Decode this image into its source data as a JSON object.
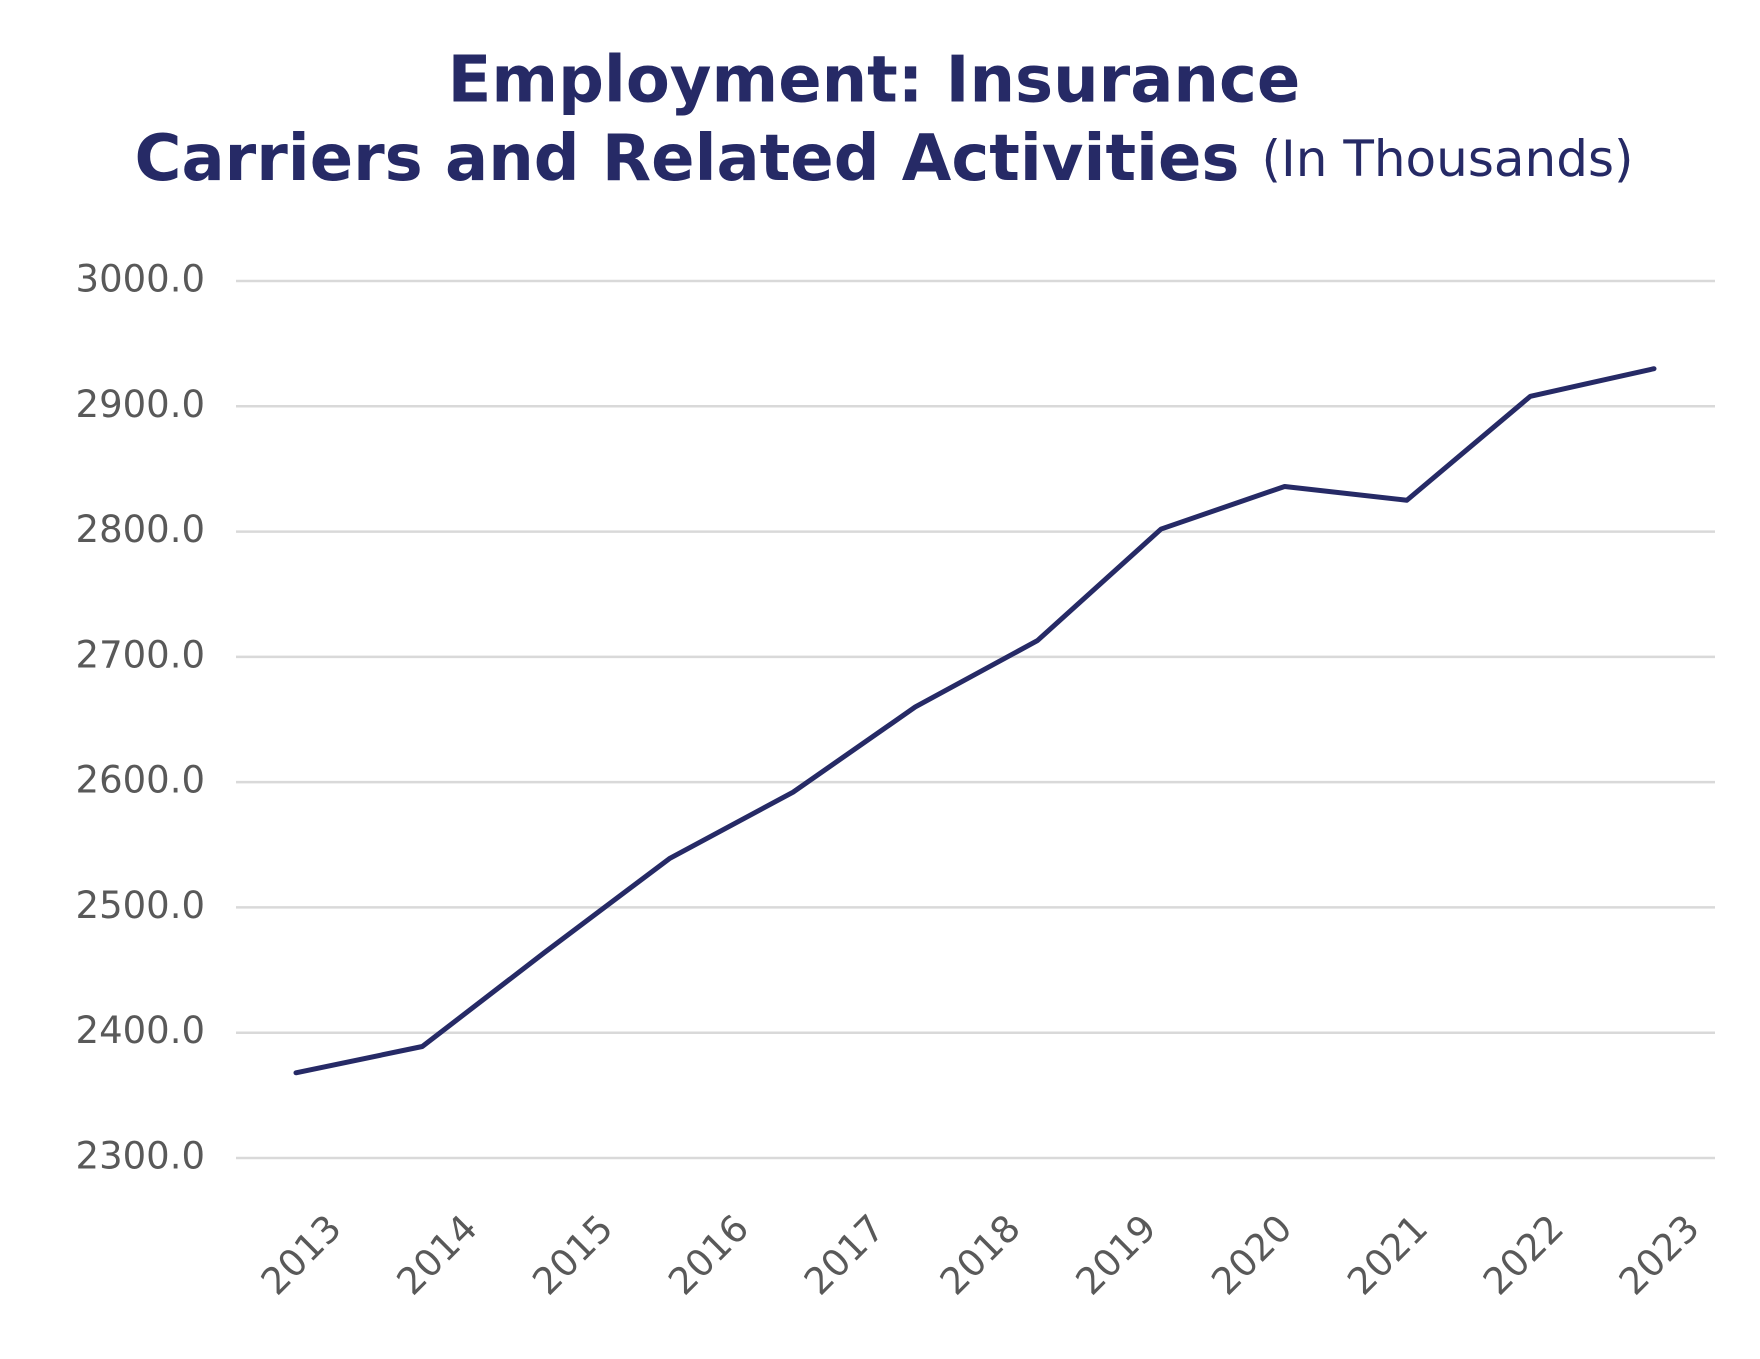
{
  "chart_data": {
    "type": "line",
    "title": [
      "Employment: Insurance",
      "Carriers and Related Activities"
    ],
    "subtitle": "(In Thousands)",
    "x": [
      2013,
      2013.93,
      2014.83,
      2015.75,
      2016.66,
      2017.56,
      2018.46,
      2019.37,
      2020.28,
      2021.18,
      2022.09,
      2023
    ],
    "series": [
      {
        "color": "#262a66",
        "values": [
          2368,
          2389,
          2464,
          2539,
          2592,
          2660,
          2713,
          2802,
          2836,
          2825,
          2908,
          2930
        ]
      }
    ],
    "xlim": [
      2013,
      2023
    ],
    "xticks": [
      2013,
      2014,
      2015,
      2016,
      2017,
      2018,
      2019,
      2020,
      2021,
      2022,
      2023
    ],
    "ylim": [
      2300,
      3000
    ],
    "yticks": [
      {
        "value": 2300,
        "label": "2300.0"
      },
      {
        "value": 2400,
        "label": "2400.0"
      },
      {
        "value": 2500,
        "label": "2500.0"
      },
      {
        "value": 2600,
        "label": "2600.0"
      },
      {
        "value": 2700,
        "label": "2700.0"
      },
      {
        "value": 2800,
        "label": "2800.0"
      },
      {
        "value": 2900,
        "label": "2900.0"
      },
      {
        "value": 3000,
        "label": "3000.0"
      }
    ],
    "grid": true
  }
}
